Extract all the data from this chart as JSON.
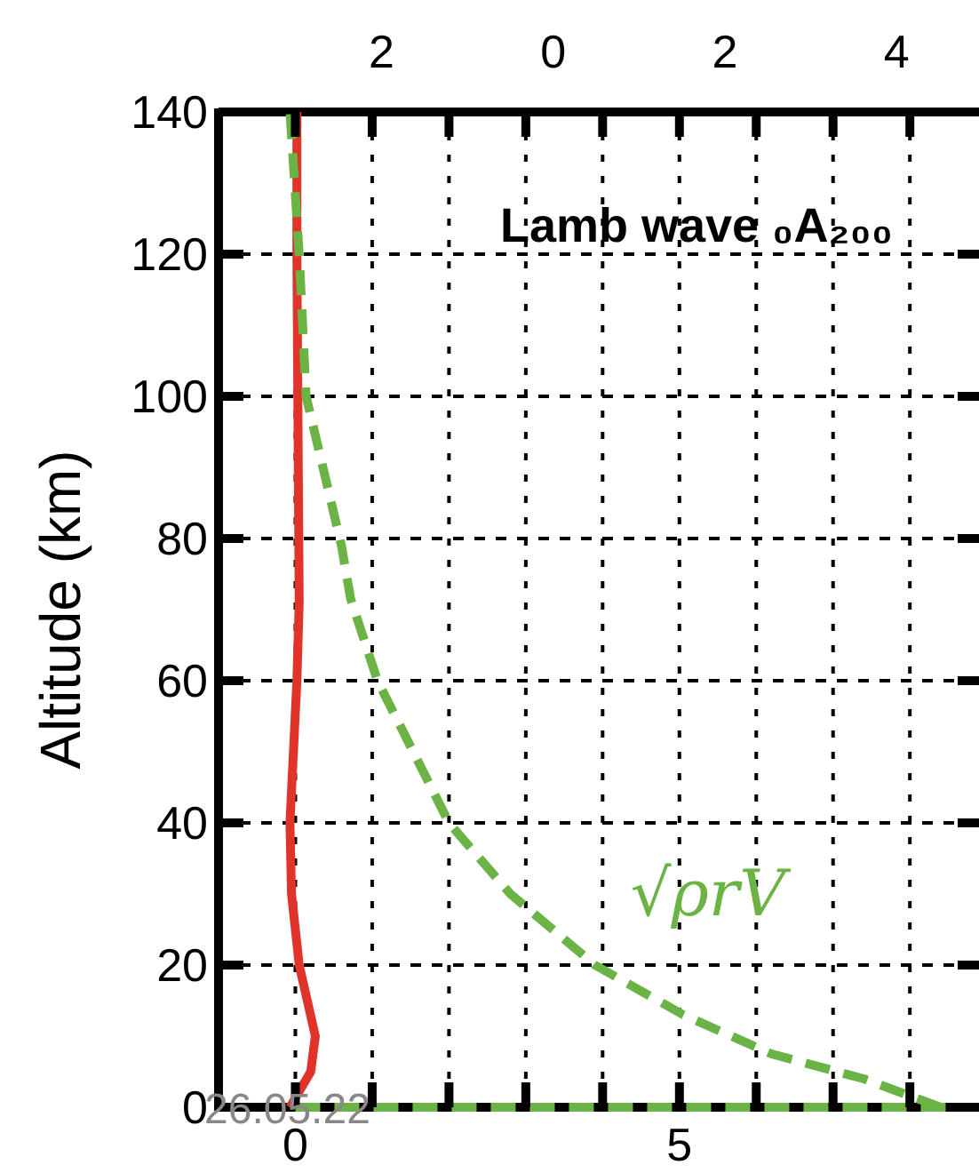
{
  "chart_data": {
    "type": "line",
    "title": "Lamb wave ₀A₂₀₀",
    "ylabel": "Altitude (km)",
    "xlim": [
      -1,
      8.9
    ],
    "xticks": [
      0,
      {
        "value": 1,
        "label": null
      },
      {
        "value": 2,
        "label": null
      },
      {
        "value": 3,
        "label": null
      },
      {
        "value": 4,
        "label": null
      },
      5,
      {
        "value": 6,
        "label": null
      },
      {
        "value": 7,
        "label": null
      },
      {
        "value": 8,
        "label": null
      }
    ],
    "x2lim": [
      -3.9,
      4.96
    ],
    "x2ticks": [
      {
        "value": -2,
        "label": "2"
      },
      0,
      2,
      4
    ],
    "ylim": [
      0,
      140
    ],
    "yticks": [
      0,
      20,
      40,
      60,
      80,
      100,
      120,
      140
    ],
    "grid": true,
    "annotations": [
      "26.05.22"
    ],
    "series": [
      {
        "color": "#e0342b",
        "line_style": "solid",
        "x": [
          -0.07,
          0.2,
          0.26,
          0.05,
          -0.05,
          -0.07,
          0.02,
          0.05,
          0.02,
          0.02
        ],
        "values": [
          0,
          5,
          10,
          20,
          30,
          40,
          60,
          71,
          120,
          140
        ]
      },
      {
        "name": "√ρrV",
        "color": "#6ab344",
        "line_style": "dashed",
        "x": [
          8.4,
          7.4,
          6.2,
          5.05,
          3.9,
          2.8,
          2.0,
          1.07,
          0.72,
          0.6,
          0.14,
          0.05,
          -0.07
        ],
        "values": [
          0,
          4,
          7.5,
          13,
          20,
          30,
          40,
          60,
          71.5,
          79,
          100,
          120,
          140
        ]
      },
      {
        "color": "#6ab344",
        "line_style": "dashed",
        "x": [
          0,
          8.8
        ],
        "values": [
          0,
          0
        ]
      }
    ]
  }
}
